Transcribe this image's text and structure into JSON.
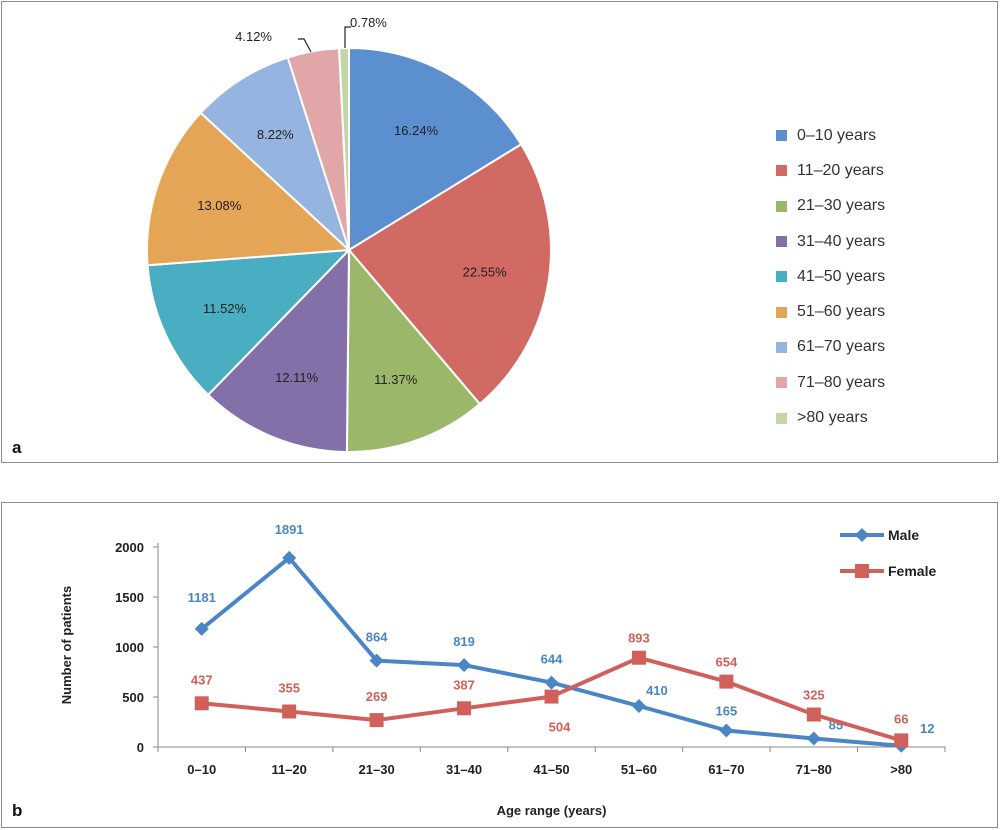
{
  "chart_data": [
    {
      "panel": "a",
      "type": "pie",
      "categories": [
        "0–10 years",
        "11–20 years",
        "21–30 years",
        "31–40 years",
        "41–50 years",
        "51–60 years",
        "61–70 years",
        "71–80 years",
        ">80 years"
      ],
      "values": [
        16.24,
        22.55,
        11.37,
        12.11,
        11.52,
        13.08,
        8.22,
        4.12,
        0.78
      ],
      "labels": [
        "16.24%",
        "22.55%",
        "11.37%",
        "12.11%",
        "11.52%",
        "13.08%",
        "8.22%",
        "4.12%",
        "0.78%"
      ],
      "colors": [
        "#5b8fcf",
        "#d06a62",
        "#9bb76a",
        "#8470a8",
        "#4aaec3",
        "#e5a556",
        "#95b5e0",
        "#e1a6a8",
        "#c3d6a6"
      ],
      "legend_position": "right"
    },
    {
      "panel": "b",
      "type": "line",
      "categories": [
        "0–10",
        "11–20",
        "21–30",
        "31–40",
        "41–50",
        "51–60",
        "61–70",
        "71–80",
        ">80"
      ],
      "series": [
        {
          "name": "Male",
          "values": [
            1181,
            1891,
            864,
            819,
            644,
            410,
            165,
            85,
            12
          ],
          "color": "#4a86c5",
          "marker": "diamond"
        },
        {
          "name": "Female",
          "values": [
            437,
            355,
            269,
            387,
            504,
            893,
            654,
            325,
            66
          ],
          "color": "#d0605a",
          "marker": "square"
        }
      ],
      "xlabel": "Age range (years)",
      "ylabel": "Number of patients",
      "ylim": [
        0,
        2000
      ],
      "yticks": [
        "0",
        "500",
        "1000",
        "1500",
        "2000"
      ],
      "legend_position": "top-right"
    }
  ],
  "panel_labels": {
    "a": "a",
    "b": "b"
  }
}
